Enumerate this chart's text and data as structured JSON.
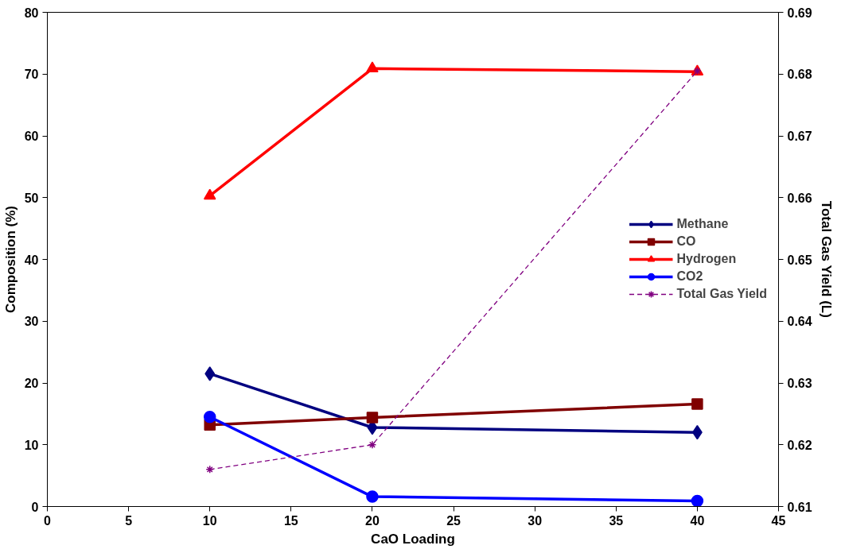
{
  "chart_data": {
    "type": "line",
    "xlabel": "CaO Loading",
    "ylabel": "Composition (%)",
    "y2label": "Total Gas Yield (L)",
    "x": [
      10,
      20,
      40
    ],
    "series": [
      {
        "name": "Methane",
        "color": "#000080",
        "values": [
          21.5,
          12.8,
          12.0
        ],
        "marker": "diamond",
        "line_style": "solid"
      },
      {
        "name": "CO",
        "color": "#800000",
        "values": [
          13.2,
          14.4,
          16.6
        ],
        "marker": "square",
        "line_style": "solid"
      },
      {
        "name": "Hydrogen",
        "color": "#ff0000",
        "values": [
          50.3,
          70.9,
          70.4
        ],
        "marker": "triangle",
        "line_style": "solid"
      },
      {
        "name": "CO2",
        "color": "#0000ff",
        "values": [
          14.5,
          1.6,
          0.9
        ],
        "marker": "circle",
        "line_style": "solid"
      },
      {
        "name": "Total Gas Yield",
        "color": "#800080",
        "values": [
          0.616,
          0.62,
          0.6805
        ],
        "marker": "cross",
        "line_style": "dashed",
        "axis": "y2"
      }
    ],
    "xlim": [
      0,
      45
    ],
    "xticks": [
      0,
      5,
      10,
      15,
      20,
      25,
      30,
      35,
      40,
      45
    ],
    "ylim": [
      0,
      80
    ],
    "yticks": [
      0,
      10,
      20,
      30,
      40,
      50,
      60,
      70,
      80
    ],
    "y2lim": [
      0.61,
      0.69
    ],
    "y2ticks": [
      {
        "value": 0.61,
        "label": "0.61"
      },
      {
        "value": 0.62,
        "label": "0.62"
      },
      {
        "value": 0.63,
        "label": "0.63"
      },
      {
        "value": 0.64,
        "label": "0.64"
      },
      {
        "value": 0.65,
        "label": "0.65"
      },
      {
        "value": 0.66,
        "label": "0.66"
      },
      {
        "value": 0.67,
        "label": "0.67"
      },
      {
        "value": 0.68,
        "label": "0.68"
      },
      {
        "value": 0.69,
        "label": "0.69"
      }
    ],
    "grid": false,
    "legend": "right"
  }
}
